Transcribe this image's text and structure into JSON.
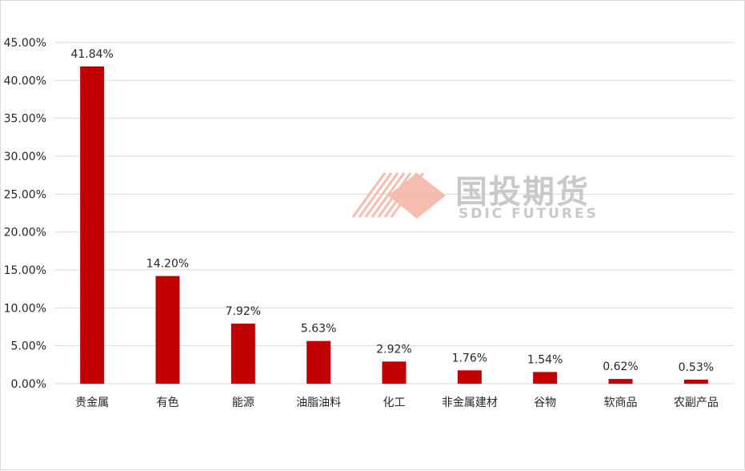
{
  "watermark": {
    "name_cn": "国投期货",
    "name_en": "SDIC FUTURES",
    "logo_color": "#f4b6a7",
    "text_color": "#c4c4c4"
  },
  "chart_data": {
    "type": "bar",
    "title": "",
    "xlabel": "",
    "ylabel": "",
    "categories": [
      "贵金属",
      "有色",
      "能源",
      "油脂油料",
      "化工",
      "非金属建材",
      "谷物",
      "软商品",
      "农副产品"
    ],
    "values": [
      41.84,
      14.2,
      7.92,
      5.63,
      2.92,
      1.76,
      1.54,
      0.62,
      0.53
    ],
    "data_labels": [
      "41.84%",
      "14.20%",
      "7.92%",
      "5.63%",
      "2.92%",
      "1.76%",
      "1.54%",
      "0.62%",
      "0.53%"
    ],
    "ylim": [
      0,
      45
    ],
    "y_ticks": [
      0,
      5,
      10,
      15,
      20,
      25,
      30,
      35,
      40,
      45
    ],
    "y_tick_labels": [
      "0.00%",
      "5.00%",
      "10.00%",
      "15.00%",
      "20.00%",
      "25.00%",
      "30.00%",
      "35.00%",
      "40.00%",
      "45.00%"
    ],
    "bar_color": "#c00000",
    "grid": true,
    "legend": "none"
  }
}
